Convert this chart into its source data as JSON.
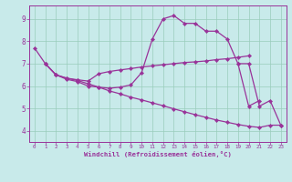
{
  "xlabel": "Windchill (Refroidissement éolien,°C)",
  "background_color": "#c8eaea",
  "grid_color": "#99ccbb",
  "line_color": "#993399",
  "xlim": [
    -0.5,
    23.5
  ],
  "ylim": [
    3.5,
    9.6
  ],
  "xticks": [
    0,
    1,
    2,
    3,
    4,
    5,
    6,
    7,
    8,
    9,
    10,
    11,
    12,
    13,
    14,
    15,
    16,
    17,
    18,
    19,
    20,
    21,
    22,
    23
  ],
  "yticks": [
    4,
    5,
    6,
    7,
    8,
    9
  ],
  "series1_x": [
    0,
    1,
    2,
    3,
    4,
    5,
    6,
    7,
    8,
    9,
    10,
    11,
    12,
    13,
    14,
    15,
    16,
    17,
    18,
    19,
    20,
    21
  ],
  "series1_y": [
    7.7,
    7.0,
    6.5,
    6.3,
    6.2,
    6.0,
    5.95,
    5.9,
    5.95,
    6.05,
    6.6,
    8.1,
    9.0,
    9.15,
    8.8,
    8.8,
    8.45,
    8.45,
    8.1,
    7.0,
    5.1,
    5.35
  ],
  "series2_x": [
    1,
    2,
    3,
    4,
    5,
    6,
    7,
    8,
    9,
    10,
    11,
    12,
    13,
    14,
    15,
    16,
    17,
    18,
    19,
    20
  ],
  "series2_y": [
    7.0,
    6.5,
    6.35,
    6.28,
    6.22,
    6.55,
    6.65,
    6.72,
    6.78,
    6.85,
    6.9,
    6.95,
    7.0,
    7.05,
    7.08,
    7.12,
    7.18,
    7.22,
    7.28,
    7.35
  ],
  "series3_x": [
    1,
    2,
    3,
    4,
    5,
    6,
    7,
    8,
    9,
    10,
    11,
    12,
    13,
    14,
    15,
    16,
    17,
    18,
    19,
    20,
    21,
    22,
    23
  ],
  "series3_y": [
    7.0,
    6.5,
    6.35,
    6.25,
    6.1,
    5.95,
    5.78,
    5.65,
    5.5,
    5.38,
    5.25,
    5.12,
    4.98,
    4.85,
    4.72,
    4.6,
    4.48,
    4.38,
    4.28,
    4.2,
    4.15,
    4.25,
    4.25
  ],
  "series4_x": [
    19,
    20,
    21,
    22,
    23
  ],
  "series4_y": [
    7.0,
    7.0,
    5.1,
    5.35,
    4.25
  ]
}
